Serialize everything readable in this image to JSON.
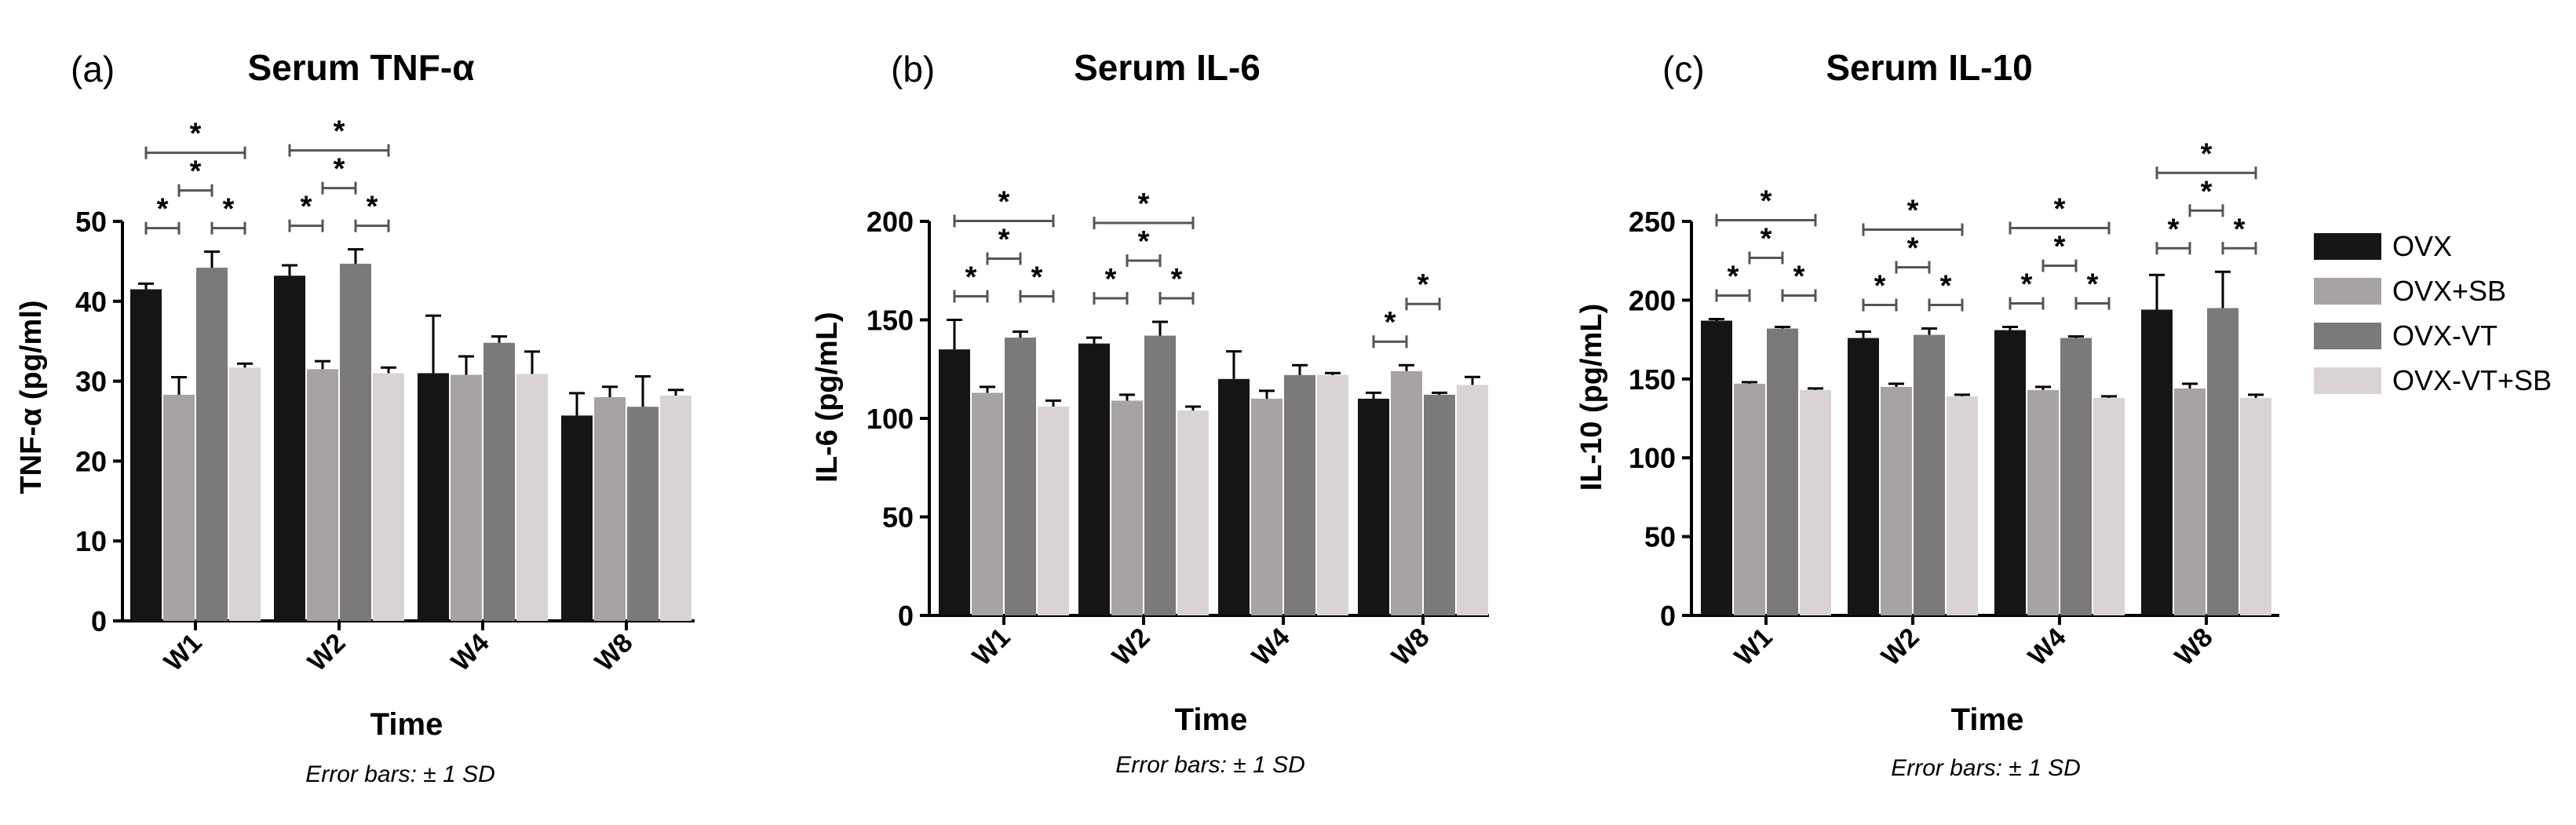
{
  "colors": {
    "OVX": "#151515",
    "OVX+SB": "#a7a2a5",
    "OVX-VT": "#7b7979",
    "OVX-VT+SB": "#dad3d6"
  },
  "legend": [
    "OVX",
    "OVX+SB",
    "OVX-VT",
    "OVX-VT+SB"
  ],
  "chart_data": [
    {
      "type": "bar",
      "panel_label": "(a)",
      "title": "Serum TNF-α",
      "xlabel": "Time",
      "ylabel": "TNF-α (pg/ml)",
      "caption": "Error bars: ± 1 SD",
      "categories": [
        "W1",
        "W2",
        "W4",
        "W8"
      ],
      "ylim": [
        0,
        50
      ],
      "yticks": [
        0,
        10,
        20,
        30,
        40,
        50
      ],
      "series": [
        {
          "name": "OVX",
          "values": [
            41.5,
            43.2,
            31,
            25.7
          ],
          "errors": [
            0.7,
            1.3,
            7.2,
            2.8
          ]
        },
        {
          "name": "OVX+SB",
          "values": [
            28.3,
            31.5,
            30.8,
            28
          ],
          "errors": [
            2.2,
            1,
            2.3,
            1.3
          ]
        },
        {
          "name": "OVX-VT",
          "values": [
            44.2,
            44.7,
            34.8,
            26.8
          ],
          "errors": [
            2,
            1.8,
            0.8,
            3.8
          ]
        },
        {
          "name": "OVX-VT+SB",
          "values": [
            31.7,
            31,
            30.9,
            28.2
          ],
          "errors": [
            0.5,
            0.7,
            2.8,
            0.7
          ]
        }
      ],
      "significance": [
        {
          "cat": 0,
          "from": 0,
          "to": 1,
          "level": 1,
          "label": "*"
        },
        {
          "cat": 0,
          "from": 2,
          "to": 3,
          "level": 1,
          "label": "*"
        },
        {
          "cat": 0,
          "from": 1,
          "to": 2,
          "level": 2,
          "label": "*"
        },
        {
          "cat": 0,
          "from": 0,
          "to": 3,
          "level": 3,
          "label": "*"
        },
        {
          "cat": 1,
          "from": 0,
          "to": 1,
          "level": 1,
          "label": "*"
        },
        {
          "cat": 1,
          "from": 2,
          "to": 3,
          "level": 1,
          "label": "*"
        },
        {
          "cat": 1,
          "from": 1,
          "to": 2,
          "level": 2,
          "label": "*"
        },
        {
          "cat": 1,
          "from": 0,
          "to": 3,
          "level": 3,
          "label": "*"
        }
      ]
    },
    {
      "type": "bar",
      "panel_label": "(b)",
      "title": "Serum IL-6",
      "xlabel": "Time",
      "ylabel": "IL-6 (pg/mL)",
      "caption": "Error bars: ± 1 SD",
      "categories": [
        "W1",
        "W2",
        "W4",
        "W8"
      ],
      "ylim": [
        0,
        200
      ],
      "yticks": [
        0,
        50,
        100,
        150,
        200
      ],
      "series": [
        {
          "name": "OVX",
          "values": [
            135,
            138,
            120,
            110
          ],
          "errors": [
            15,
            3,
            14,
            3
          ]
        },
        {
          "name": "OVX+SB",
          "values": [
            113,
            109,
            110,
            124
          ],
          "errors": [
            3,
            3,
            4,
            3
          ]
        },
        {
          "name": "OVX-VT",
          "values": [
            141,
            142,
            122,
            112
          ],
          "errors": [
            3,
            7,
            5,
            1
          ]
        },
        {
          "name": "OVX-VT+SB",
          "values": [
            106,
            104,
            122,
            117
          ],
          "errors": [
            3,
            2,
            1,
            4
          ]
        }
      ],
      "significance": [
        {
          "cat": 0,
          "from": 0,
          "to": 1,
          "level": 1,
          "label": "*"
        },
        {
          "cat": 0,
          "from": 2,
          "to": 3,
          "level": 1,
          "label": "*"
        },
        {
          "cat": 0,
          "from": 1,
          "to": 2,
          "level": 2,
          "label": "*"
        },
        {
          "cat": 0,
          "from": 0,
          "to": 3,
          "level": 3,
          "label": "*"
        },
        {
          "cat": 1,
          "from": 0,
          "to": 1,
          "level": 1,
          "label": "*"
        },
        {
          "cat": 1,
          "from": 2,
          "to": 3,
          "level": 1,
          "label": "*"
        },
        {
          "cat": 1,
          "from": 1,
          "to": 2,
          "level": 2,
          "label": "*"
        },
        {
          "cat": 1,
          "from": 0,
          "to": 3,
          "level": 3,
          "label": "*"
        },
        {
          "cat": 3,
          "from": 0,
          "to": 1,
          "level": 1,
          "label": "*"
        },
        {
          "cat": 3,
          "from": 1,
          "to": 2,
          "level": 2,
          "label": "*"
        }
      ]
    },
    {
      "type": "bar",
      "panel_label": "(c)",
      "title": "Serum IL-10",
      "xlabel": "Time",
      "ylabel": "IL-10 (pg/mL)",
      "caption": "Error bars: ± 1 SD",
      "categories": [
        "W1",
        "W2",
        "W4",
        "W8"
      ],
      "ylim": [
        0,
        250
      ],
      "yticks": [
        0,
        50,
        100,
        150,
        200,
        250
      ],
      "series": [
        {
          "name": "OVX",
          "values": [
            187,
            176,
            181,
            194
          ],
          "errors": [
            1,
            4,
            2,
            22
          ]
        },
        {
          "name": "OVX+SB",
          "values": [
            147,
            145,
            143,
            144
          ],
          "errors": [
            1,
            2,
            2,
            3
          ]
        },
        {
          "name": "OVX-VT",
          "values": [
            182,
            178,
            176,
            195
          ],
          "errors": [
            1,
            4,
            1,
            23
          ]
        },
        {
          "name": "OVX-VT+SB",
          "values": [
            143,
            139,
            138,
            138
          ],
          "errors": [
            1,
            1,
            1,
            2
          ]
        }
      ],
      "significance": [
        {
          "cat": 0,
          "from": 0,
          "to": 1,
          "level": 1,
          "label": "*"
        },
        {
          "cat": 0,
          "from": 2,
          "to": 3,
          "level": 1,
          "label": "*"
        },
        {
          "cat": 0,
          "from": 1,
          "to": 2,
          "level": 2,
          "label": "*"
        },
        {
          "cat": 0,
          "from": 0,
          "to": 3,
          "level": 3,
          "label": "*"
        },
        {
          "cat": 1,
          "from": 0,
          "to": 1,
          "level": 1,
          "label": "*"
        },
        {
          "cat": 1,
          "from": 2,
          "to": 3,
          "level": 1,
          "label": "*"
        },
        {
          "cat": 1,
          "from": 1,
          "to": 2,
          "level": 2,
          "label": "*"
        },
        {
          "cat": 1,
          "from": 0,
          "to": 3,
          "level": 3,
          "label": "*"
        },
        {
          "cat": 2,
          "from": 0,
          "to": 1,
          "level": 1,
          "label": "*"
        },
        {
          "cat": 2,
          "from": 2,
          "to": 3,
          "level": 1,
          "label": "*"
        },
        {
          "cat": 2,
          "from": 1,
          "to": 2,
          "level": 2,
          "label": "*"
        },
        {
          "cat": 2,
          "from": 0,
          "to": 3,
          "level": 3,
          "label": "*"
        },
        {
          "cat": 3,
          "from": 0,
          "to": 1,
          "level": 1,
          "label": "*"
        },
        {
          "cat": 3,
          "from": 2,
          "to": 3,
          "level": 1,
          "label": "*"
        },
        {
          "cat": 3,
          "from": 1,
          "to": 2,
          "level": 2,
          "label": "*"
        },
        {
          "cat": 3,
          "from": 0,
          "to": 3,
          "level": 3,
          "label": "*"
        }
      ]
    }
  ]
}
